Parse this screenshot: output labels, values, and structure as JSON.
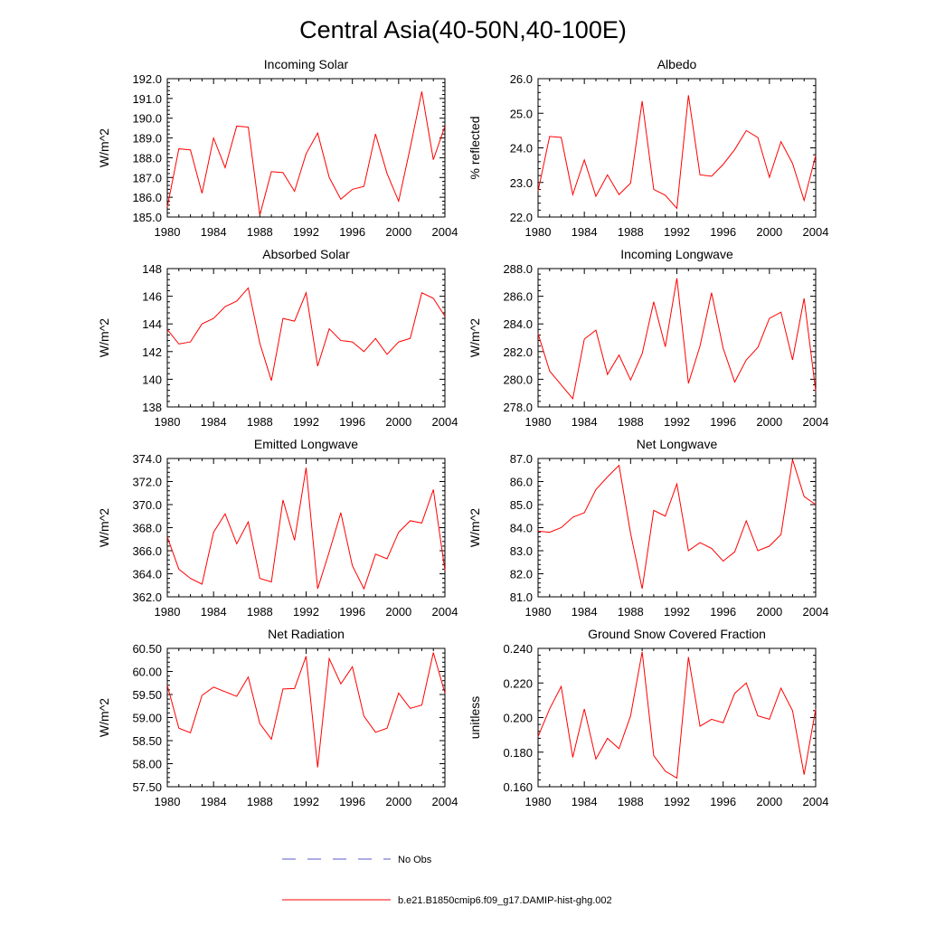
{
  "page_title": "Central Asia(40-50N,40-100E)",
  "legend": {
    "obs_label": "No Obs",
    "obs_color": "#5a5acd",
    "model_label": "b.e21.B1850cmip6.f09_g17.DAMIP-hist-ghg.002",
    "model_color": "#ff0000"
  },
  "chart_data": [
    {
      "type": "line",
      "title": "Incoming Solar",
      "ylabel": "W/m^2",
      "xlim": [
        1980,
        2004
      ],
      "ylim": [
        185.0,
        192.0
      ],
      "yticks": [
        "185.0",
        "186.0",
        "187.0",
        "188.0",
        "189.0",
        "190.0",
        "191.0",
        "192.0"
      ],
      "xticks": [
        "1980",
        "1984",
        "1988",
        "1992",
        "1996",
        "2000",
        "2004"
      ],
      "x": [
        1980,
        1981,
        1982,
        1983,
        1984,
        1985,
        1986,
        1987,
        1988,
        1989,
        1990,
        1991,
        1992,
        1993,
        1994,
        1995,
        1996,
        1997,
        1998,
        1999,
        2000,
        2001,
        2002,
        2003,
        2004
      ],
      "series": [
        {
          "values": [
            185.5,
            188.45,
            188.4,
            186.2,
            189.0,
            187.5,
            189.6,
            189.55,
            185.1,
            187.3,
            187.25,
            186.3,
            188.2,
            189.25,
            187.0,
            185.9,
            186.4,
            186.55,
            189.2,
            187.2,
            185.8,
            188.5,
            191.35,
            187.9,
            189.6
          ]
        }
      ]
    },
    {
      "type": "line",
      "title": "Albedo",
      "ylabel": "% reflected",
      "xlim": [
        1980,
        2004
      ],
      "ylim": [
        22.0,
        26.0
      ],
      "yticks": [
        "22.0",
        "23.0",
        "24.0",
        "25.0",
        "26.0"
      ],
      "xticks": [
        "1980",
        "1984",
        "1988",
        "1992",
        "1996",
        "2000",
        "2004"
      ],
      "x": [
        1980,
        1981,
        1982,
        1983,
        1984,
        1985,
        1986,
        1987,
        1988,
        1989,
        1990,
        1991,
        1992,
        1993,
        1994,
        1995,
        1996,
        1997,
        1998,
        1999,
        2000,
        2001,
        2002,
        2003,
        2004
      ],
      "series": [
        {
          "values": [
            22.75,
            24.33,
            24.3,
            22.65,
            23.65,
            22.6,
            23.22,
            22.65,
            22.98,
            25.35,
            22.8,
            22.63,
            22.25,
            25.52,
            23.22,
            23.18,
            23.52,
            23.95,
            24.5,
            24.3,
            23.15,
            24.18,
            23.55,
            22.48,
            23.78
          ]
        }
      ]
    },
    {
      "type": "line",
      "title": "Absorbed Solar",
      "ylabel": "W/m^2",
      "xlim": [
        1980,
        2004
      ],
      "ylim": [
        138,
        148
      ],
      "yticks": [
        "138",
        "140",
        "142",
        "144",
        "146",
        "148"
      ],
      "xticks": [
        "1980",
        "1984",
        "1988",
        "1992",
        "1996",
        "2000",
        "2004"
      ],
      "x": [
        1980,
        1981,
        1982,
        1983,
        1984,
        1985,
        1986,
        1987,
        1988,
        1989,
        1990,
        1991,
        1992,
        1993,
        1994,
        1995,
        1996,
        1997,
        1998,
        1999,
        2000,
        2001,
        2002,
        2003,
        2004
      ],
      "series": [
        {
          "values": [
            143.6,
            142.55,
            142.7,
            144.0,
            144.4,
            145.25,
            145.65,
            146.6,
            142.6,
            139.9,
            144.4,
            144.2,
            146.25,
            140.95,
            143.65,
            142.8,
            142.7,
            142.0,
            142.95,
            141.8,
            142.7,
            142.95,
            146.25,
            145.85,
            144.55
          ]
        }
      ]
    },
    {
      "type": "line",
      "title": "Incoming Longwave",
      "ylabel": "W/m^2",
      "xlim": [
        1980,
        2004
      ],
      "ylim": [
        278.0,
        288.0
      ],
      "yticks": [
        "278.0",
        "280.0",
        "282.0",
        "284.0",
        "286.0",
        "288.0"
      ],
      "xticks": [
        "1980",
        "1984",
        "1988",
        "1992",
        "1996",
        "2000",
        "2004"
      ],
      "x": [
        1980,
        1981,
        1982,
        1983,
        1984,
        1985,
        1986,
        1987,
        1988,
        1989,
        1990,
        1991,
        1992,
        1993,
        1994,
        1995,
        1996,
        1997,
        1998,
        1999,
        2000,
        2001,
        2002,
        2003,
        2004
      ],
      "series": [
        {
          "values": [
            283.3,
            280.6,
            279.6,
            278.6,
            282.9,
            283.55,
            280.35,
            281.75,
            279.95,
            281.85,
            285.6,
            282.35,
            287.3,
            279.7,
            282.4,
            286.25,
            282.25,
            279.8,
            281.4,
            282.3,
            284.4,
            284.85,
            281.4,
            285.85,
            279.15
          ]
        }
      ]
    },
    {
      "type": "line",
      "title": "Emitted Longwave",
      "ylabel": "W/m^2",
      "xlim": [
        1980,
        2004
      ],
      "ylim": [
        362.0,
        374.0
      ],
      "yticks": [
        "362.0",
        "364.0",
        "366.0",
        "368.0",
        "370.0",
        "372.0",
        "374.0"
      ],
      "xticks": [
        "1980",
        "1984",
        "1988",
        "1992",
        "1996",
        "2000",
        "2004"
      ],
      "x": [
        1980,
        1981,
        1982,
        1983,
        1984,
        1985,
        1986,
        1987,
        1988,
        1989,
        1990,
        1991,
        1992,
        1993,
        1994,
        1995,
        1996,
        1997,
        1998,
        1999,
        2000,
        2001,
        2002,
        2003,
        2004
      ],
      "series": [
        {
          "values": [
            367.2,
            364.4,
            363.6,
            363.1,
            367.6,
            369.2,
            366.6,
            368.5,
            363.6,
            363.3,
            370.4,
            366.9,
            373.2,
            362.7,
            365.9,
            369.3,
            364.7,
            362.7,
            365.7,
            365.3,
            367.6,
            368.6,
            368.4,
            371.3,
            364.3
          ]
        }
      ]
    },
    {
      "type": "line",
      "title": "Net Longwave",
      "ylabel": "W/m^2",
      "xlim": [
        1980,
        2004
      ],
      "ylim": [
        81.0,
        87.0
      ],
      "yticks": [
        "81.0",
        "82.0",
        "83.0",
        "84.0",
        "85.0",
        "86.0",
        "87.0"
      ],
      "xticks": [
        "1980",
        "1984",
        "1988",
        "1992",
        "1996",
        "2000",
        "2004"
      ],
      "x": [
        1980,
        1981,
        1982,
        1983,
        1984,
        1985,
        1986,
        1987,
        1988,
        1989,
        1990,
        1991,
        1992,
        1993,
        1994,
        1995,
        1996,
        1997,
        1998,
        1999,
        2000,
        2001,
        2002,
        2003,
        2004
      ],
      "series": [
        {
          "values": [
            83.85,
            83.8,
            84.0,
            84.45,
            84.65,
            85.65,
            86.2,
            86.7,
            83.75,
            81.35,
            84.75,
            84.5,
            85.9,
            83.0,
            83.35,
            83.1,
            82.55,
            82.95,
            84.3,
            83.0,
            83.2,
            83.7,
            86.95,
            85.35,
            85.0
          ]
        }
      ]
    },
    {
      "type": "line",
      "title": "Net Radiation",
      "ylabel": "W/m^2",
      "xlim": [
        1980,
        2004
      ],
      "ylim": [
        57.5,
        60.5
      ],
      "yticks": [
        "57.50",
        "58.00",
        "58.50",
        "59.00",
        "59.50",
        "60.00",
        "60.50"
      ],
      "xticks": [
        "1980",
        "1984",
        "1988",
        "1992",
        "1996",
        "2000",
        "2004"
      ],
      "x": [
        1980,
        1981,
        1982,
        1983,
        1984,
        1985,
        1986,
        1987,
        1988,
        1989,
        1990,
        1991,
        1992,
        1993,
        1994,
        1995,
        1996,
        1997,
        1998,
        1999,
        2000,
        2001,
        2002,
        2003,
        2004
      ],
      "series": [
        {
          "values": [
            59.7,
            58.77,
            58.67,
            59.48,
            59.66,
            59.56,
            59.46,
            59.88,
            58.87,
            58.53,
            59.62,
            59.63,
            60.33,
            57.92,
            60.28,
            59.73,
            60.1,
            59.03,
            58.68,
            58.77,
            59.53,
            59.2,
            59.27,
            60.41,
            59.53
          ]
        }
      ]
    },
    {
      "type": "line",
      "title": "Ground Snow Covered Fraction",
      "ylabel": "unitless",
      "xlim": [
        1980,
        2004
      ],
      "ylim": [
        0.16,
        0.24
      ],
      "yticks": [
        "0.160",
        "0.180",
        "0.200",
        "0.220",
        "0.240"
      ],
      "xticks": [
        "1980",
        "1984",
        "1988",
        "1992",
        "1996",
        "2000",
        "2004"
      ],
      "x": [
        1980,
        1981,
        1982,
        1983,
        1984,
        1985,
        1986,
        1987,
        1988,
        1989,
        1990,
        1991,
        1992,
        1993,
        1994,
        1995,
        1996,
        1997,
        1998,
        1999,
        2000,
        2001,
        2002,
        2003,
        2004
      ],
      "series": [
        {
          "values": [
            0.189,
            0.205,
            0.218,
            0.177,
            0.205,
            0.176,
            0.188,
            0.182,
            0.201,
            0.238,
            0.178,
            0.169,
            0.165,
            0.235,
            0.195,
            0.199,
            0.197,
            0.214,
            0.22,
            0.201,
            0.199,
            0.217,
            0.204,
            0.167,
            0.205
          ]
        }
      ]
    }
  ]
}
